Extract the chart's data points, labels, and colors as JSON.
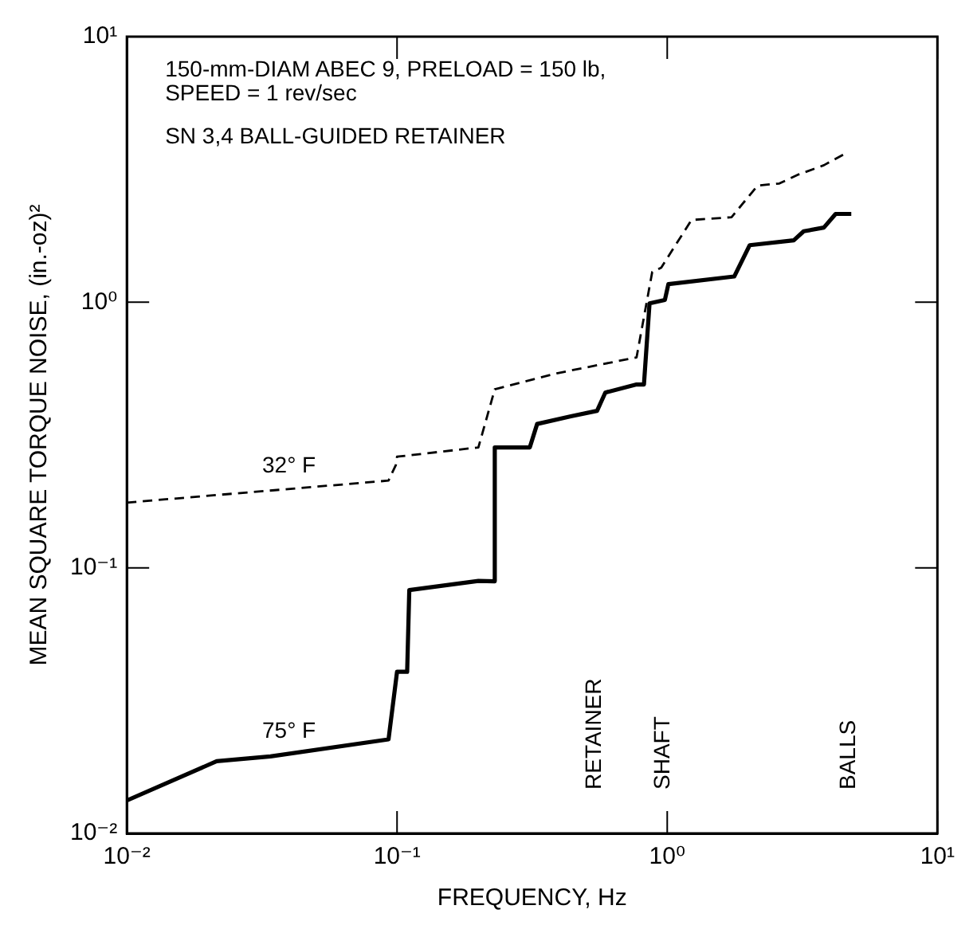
{
  "chart_data": {
    "type": "line",
    "xlabel": "FREQUENCY, Hz",
    "ylabel": "MEAN SQUARE TORQUE NOISE, (in.-oz)²",
    "log": "xy",
    "xlim": [
      0.01,
      10
    ],
    "ylim": [
      0.01,
      10
    ],
    "xticks": [
      {
        "value": 0.01,
        "label": "10⁻²"
      },
      {
        "value": 0.1,
        "label": "10⁻¹"
      },
      {
        "value": 1,
        "label": "10⁰"
      },
      {
        "value": 10,
        "label": "10¹"
      }
    ],
    "yticks": [
      {
        "value": 0.01,
        "label": "10⁻²"
      },
      {
        "value": 0.1,
        "label": "10⁻¹"
      },
      {
        "value": 1,
        "label": "10⁰"
      },
      {
        "value": 10,
        "label": "10¹"
      }
    ],
    "grid": false,
    "legend": false,
    "marker": "none",
    "series": [
      {
        "name": "32° F",
        "color": "#000000",
        "line_style": "dashed",
        "x": [
          0.01,
          0.093,
          0.099,
          0.1,
          0.2,
          0.23,
          0.39,
          0.77,
          0.88,
          0.95,
          1.23,
          1.73,
          2.16,
          2.6,
          3.07,
          3.8,
          4.5
        ],
        "values": [
          0.176,
          0.213,
          0.244,
          0.262,
          0.284,
          0.47,
          0.54,
          0.62,
          1.3,
          1.35,
          2.04,
          2.09,
          2.75,
          2.8,
          3.03,
          3.28,
          3.6
        ]
      },
      {
        "name": "75° F",
        "color": "#000000",
        "line_style": "solid",
        "x": [
          0.01,
          0.0215,
          0.034,
          0.093,
          0.1,
          0.109,
          0.111,
          0.2,
          0.23,
          0.23,
          0.31,
          0.33,
          0.44,
          0.55,
          0.59,
          0.77,
          0.82,
          0.86,
          0.98,
          1.01,
          1.77,
          2.02,
          2.94,
          3.2,
          3.8,
          4.2,
          4.8
        ],
        "values": [
          0.0133,
          0.0187,
          0.0195,
          0.0226,
          0.0406,
          0.0406,
          0.0824,
          0.0893,
          0.089,
          0.284,
          0.284,
          0.348,
          0.372,
          0.39,
          0.457,
          0.49,
          0.49,
          0.99,
          1.02,
          1.17,
          1.25,
          1.64,
          1.71,
          1.85,
          1.91,
          2.15,
          2.15
        ]
      }
    ],
    "annotations": [
      "150-mm-DIAM ABEC 9, PRELOAD = 150 lb,",
      "SPEED = 1 rev/sec",
      "SN 3,4 BALL-GUIDED RETAINER",
      "RETAINER",
      "SHAFT",
      "BALLS"
    ]
  }
}
